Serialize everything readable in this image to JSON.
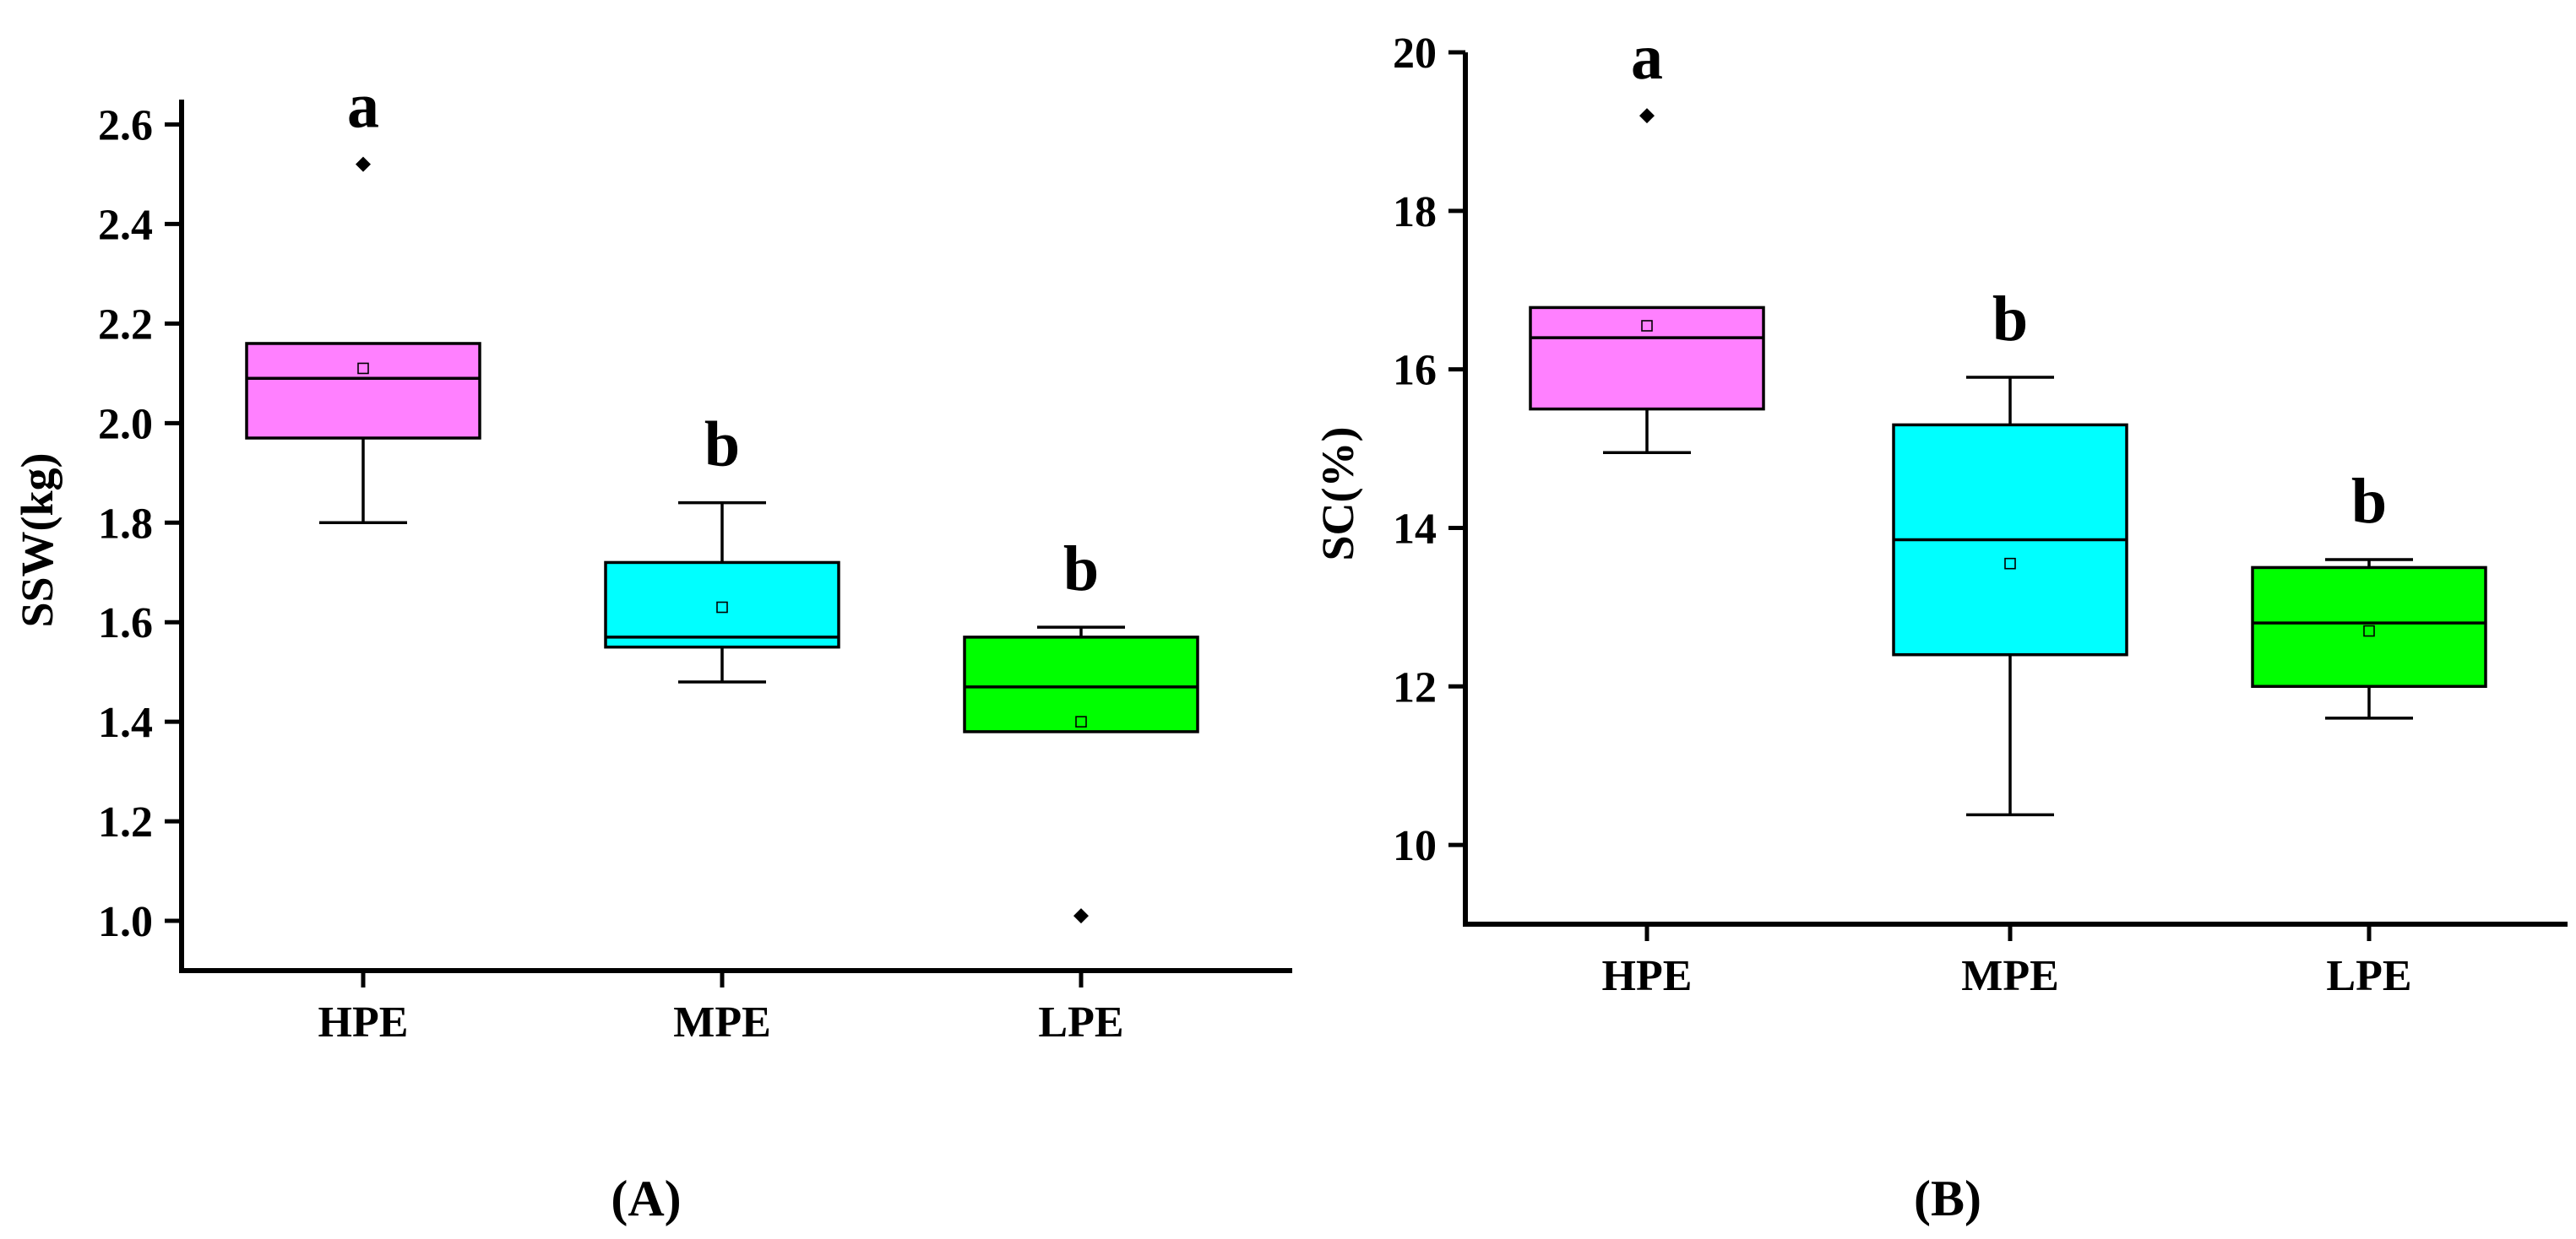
{
  "chart_data": [
    {
      "type": "box",
      "panel_label": "(A)",
      "ylabel": "SSW(kg)",
      "ylim": [
        0.9,
        2.65
      ],
      "yticks": [
        1.0,
        1.2,
        1.4,
        1.6,
        1.8,
        2.0,
        2.2,
        2.4,
        2.6
      ],
      "ytick_labels": [
        "1.0",
        "1.2",
        "1.4",
        "1.6",
        "1.8",
        "2.0",
        "2.2",
        "2.4",
        "2.6"
      ],
      "categories": [
        "HPE",
        "MPE",
        "LPE"
      ],
      "boxes": [
        {
          "name": "HPE",
          "color": "#ff80ff",
          "whisker_low": 1.8,
          "q1": 1.97,
          "median": 2.09,
          "q3": 2.16,
          "whisker_high": 2.16,
          "mean": 2.11,
          "outliers": [
            2.52
          ],
          "significance": "a"
        },
        {
          "name": "MPE",
          "color": "#00ffff",
          "whisker_low": 1.48,
          "q1": 1.55,
          "median": 1.57,
          "q3": 1.72,
          "whisker_high": 1.84,
          "mean": 1.63,
          "outliers": [],
          "significance": "b"
        },
        {
          "name": "LPE",
          "color": "#00ff00",
          "whisker_low": 1.38,
          "q1": 1.38,
          "median": 1.47,
          "q3": 1.57,
          "whisker_high": 1.59,
          "mean": 1.4,
          "outliers": [
            1.01
          ],
          "significance": "b"
        }
      ]
    },
    {
      "type": "box",
      "panel_label": "(B)",
      "ylabel": "SC(%)",
      "ylim": [
        9,
        20
      ],
      "yticks": [
        10,
        12,
        14,
        16,
        18,
        20
      ],
      "ytick_labels": [
        "10",
        "12",
        "14",
        "16",
        "18",
        "20"
      ],
      "categories": [
        "HPE",
        "MPE",
        "LPE"
      ],
      "boxes": [
        {
          "name": "HPE",
          "color": "#ff80ff",
          "whisker_low": 14.95,
          "q1": 15.5,
          "median": 16.4,
          "q3": 16.78,
          "whisker_high": 16.78,
          "mean": 16.55,
          "outliers": [
            19.2
          ],
          "significance": "a"
        },
        {
          "name": "MPE",
          "color": "#00ffff",
          "whisker_low": 10.38,
          "q1": 12.4,
          "median": 13.85,
          "q3": 15.3,
          "whisker_high": 15.9,
          "mean": 13.55,
          "outliers": [],
          "significance": "b"
        },
        {
          "name": "LPE",
          "color": "#00ff00",
          "whisker_low": 11.6,
          "q1": 12.0,
          "median": 12.8,
          "q3": 13.5,
          "whisker_high": 13.6,
          "mean": 12.7,
          "outliers": [],
          "significance": "b"
        }
      ]
    }
  ]
}
